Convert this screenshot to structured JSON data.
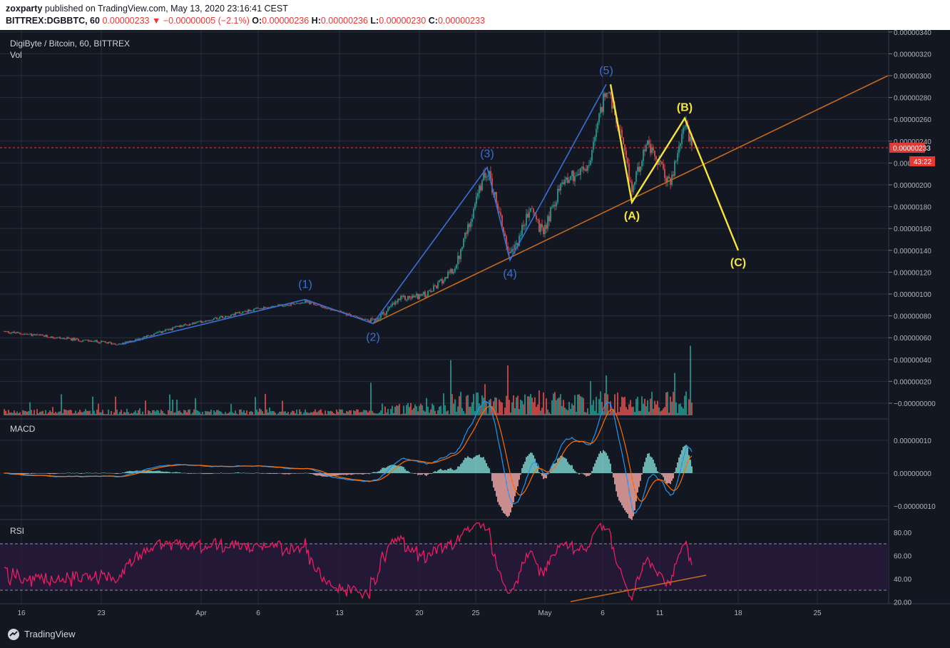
{
  "header": {
    "publisher": "zoxparty",
    "published_text": "published on TradingView.com, May 13, 2020 23:16:41 CEST",
    "symbol": "BITTREX:DGBBTC, 60",
    "last": "0.00000233",
    "change": "−0.00000005 (−2.1%)",
    "o_label": "O:",
    "o": "0.00000236",
    "h_label": "H:",
    "h": "0.00000236",
    "l_label": "L:",
    "l": "0.00000230",
    "c_label": "C:",
    "c": "0.00000233"
  },
  "chart_title": "DigiByte / Bitcoin, 60, BITTREX",
  "vol_label": "Vol",
  "macd_label": "MACD",
  "rsi_label": "RSI",
  "footer": {
    "brand": "TradingView"
  },
  "colors": {
    "background": "#131722",
    "up": "#26a69a",
    "down": "#ef5350",
    "wave_blue": "#3a6fd8",
    "wave_yellow": "#f5e63b",
    "trendline": "#c46a1c",
    "rsi_line": "#e91e63",
    "price_line": "#e53935"
  },
  "chart_data": [
    {
      "type": "candlestick",
      "title": "DigiByte / Bitcoin, 60, BITTREX",
      "y_ticks": [
        "0.00000340",
        "0.00000320",
        "0.00000300",
        "0.00000280",
        "0.00000260",
        "0.00000240",
        "0.00000220",
        "0.00000200",
        "0.00000180",
        "0.00000160",
        "0.00000140",
        "0.00000120",
        "0.00000100",
        "0.00000080",
        "0.00000060",
        "0.00000040",
        "0.00000020",
        "−0.00000000"
      ],
      "ylim": [
        0.0,
        3.4e-06
      ],
      "x_ticks": [
        "16",
        "23",
        "Apr",
        "6",
        "13",
        "20",
        "25",
        "May",
        "6",
        "11",
        "18",
        "25"
      ],
      "last_price": "0.00000233",
      "countdown": "43:22",
      "close_path": [
        {
          "t": 0,
          "v": 6.6e-07
        },
        {
          "t": 80,
          "v": 6e-07
        },
        {
          "t": 170,
          "v": 5.4e-07
        },
        {
          "t": 250,
          "v": 7e-07
        },
        {
          "t": 350,
          "v": 8.5e-07
        },
        {
          "t": 428,
          "v": 9.3e-07
        },
        {
          "t": 470,
          "v": 8.5e-07
        },
        {
          "t": 523,
          "v": 7.4e-07
        },
        {
          "t": 560,
          "v": 9.5e-07
        },
        {
          "t": 600,
          "v": 1e-06
        },
        {
          "t": 640,
          "v": 1.25e-06
        },
        {
          "t": 662,
          "v": 1.75e-06
        },
        {
          "t": 683,
          "v": 2.15e-06
        },
        {
          "t": 700,
          "v": 1.75e-06
        },
        {
          "t": 715,
          "v": 1.32e-06
        },
        {
          "t": 745,
          "v": 1.8e-06
        },
        {
          "t": 760,
          "v": 1.55e-06
        },
        {
          "t": 790,
          "v": 2.05e-06
        },
        {
          "t": 825,
          "v": 2.15e-06
        },
        {
          "t": 850,
          "v": 2.9e-06
        },
        {
          "t": 870,
          "v": 2.45e-06
        },
        {
          "t": 886,
          "v": 1.95e-06
        },
        {
          "t": 905,
          "v": 2.38e-06
        },
        {
          "t": 925,
          "v": 2.18e-06
        },
        {
          "t": 940,
          "v": 2e-06
        },
        {
          "t": 960,
          "v": 2.58e-06
        },
        {
          "t": 970,
          "v": 2.33e-06
        }
      ],
      "wave_labels_blue": [
        {
          "label": "(1)",
          "t": 428,
          "v": 9.5e-07
        },
        {
          "label": "(2)",
          "t": 523,
          "v": 7.3e-07
        },
        {
          "label": "(3)",
          "t": 683,
          "v": 2.16e-06
        },
        {
          "label": "(4)",
          "t": 715,
          "v": 1.31e-06
        },
        {
          "label": "(5)",
          "t": 850,
          "v": 2.92e-06
        }
      ],
      "wave_labels_yellow": [
        {
          "label": "(A)",
          "t": 886,
          "v": 1.84e-06
        },
        {
          "label": "(B)",
          "t": 960,
          "v": 2.61e-06
        },
        {
          "label": "(C)",
          "t": 1035,
          "v": 1.4e-06
        }
      ],
      "trendline": {
        "t1": 523,
        "v1": 7.3e-07,
        "t2": 1245,
        "v2": 3e-06
      }
    },
    {
      "type": "bar",
      "title": "Vol"
    },
    {
      "type": "line",
      "title": "MACD",
      "y_ticks": [
        "0.00000010",
        "0.00000000",
        "−0.00000010"
      ],
      "ylim": [
        -1.2e-07,
        1.2e-07
      ]
    },
    {
      "type": "line",
      "title": "RSI",
      "y_ticks": [
        "80.00",
        "60.00",
        "40.00",
        "20.00"
      ],
      "ylim": [
        18,
        88
      ],
      "band": [
        30,
        70
      ]
    }
  ]
}
